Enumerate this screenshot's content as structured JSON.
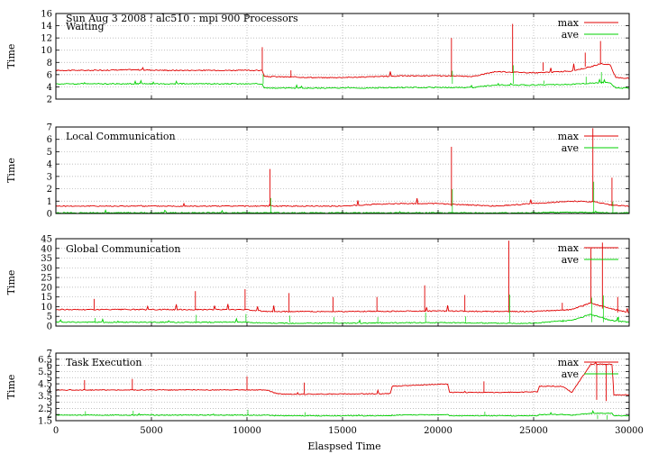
{
  "figure": {
    "title": "Sun Aug 3 2008 : alc510 : mpi 900 Processors",
    "xlabel": "Elaspsed Time"
  },
  "chart_data": [
    {
      "type": "line",
      "panel_label": "Waiting",
      "ylabel": "Time",
      "xlim": [
        0,
        30000
      ],
      "ylim": [
        2,
        16
      ],
      "yticks": [
        2,
        4,
        6,
        8,
        10,
        12,
        14,
        16
      ],
      "grid": true,
      "legend": "top-right",
      "x": [
        0,
        2000,
        4000,
        6000,
        8000,
        10800,
        10900,
        12500,
        14000,
        16000,
        18000,
        20000,
        21800,
        23000,
        25200,
        27000,
        28000,
        28500,
        29000,
        29300,
        30000
      ],
      "series": [
        {
          "name": "max",
          "color": "#e00000",
          "values": [
            6.7,
            6.7,
            6.8,
            6.7,
            6.7,
            6.7,
            5.7,
            5.6,
            5.5,
            5.6,
            5.8,
            5.8,
            5.7,
            6.5,
            6.3,
            6.6,
            7.3,
            7.8,
            7.6,
            5.5,
            5.4
          ]
        },
        {
          "name": "ave",
          "color": "#00d000",
          "values": [
            4.5,
            4.5,
            4.5,
            4.5,
            4.5,
            4.5,
            3.8,
            3.8,
            3.8,
            3.8,
            3.9,
            3.9,
            3.9,
            4.3,
            4.3,
            4.4,
            4.6,
            4.7,
            4.7,
            3.8,
            3.8
          ]
        }
      ],
      "spikes": [
        [
          10800,
          10.5
        ],
        [
          12300,
          6.7
        ],
        [
          20700,
          12.0
        ],
        [
          23900,
          14.3
        ],
        [
          25500,
          8.0
        ],
        [
          27700,
          9.6
        ],
        [
          28500,
          11.5
        ]
      ]
    },
    {
      "type": "line",
      "panel_label": "Local Communication",
      "ylabel": "Time",
      "xlim": [
        0,
        30000
      ],
      "ylim": [
        0,
        7
      ],
      "yticks": [
        0,
        1,
        2,
        3,
        4,
        5,
        6,
        7
      ],
      "grid": true,
      "legend": "top-right",
      "x": [
        0,
        5000,
        10000,
        11200,
        15000,
        17500,
        20000,
        23000,
        24000,
        27000,
        28200,
        29000,
        30000
      ],
      "series": [
        {
          "name": "max",
          "color": "#e00000",
          "values": [
            0.6,
            0.6,
            0.6,
            0.6,
            0.6,
            0.8,
            0.8,
            0.6,
            0.7,
            1.0,
            0.95,
            0.7,
            0.6
          ]
        },
        {
          "name": "ave",
          "color": "#00d000",
          "values": [
            0.05,
            0.05,
            0.05,
            0.05,
            0.05,
            0.05,
            0.05,
            0.05,
            0.05,
            0.1,
            0.1,
            0.05,
            0.05
          ]
        }
      ],
      "spikes": [
        [
          11200,
          3.6
        ],
        [
          20700,
          5.4
        ],
        [
          28100,
          6.9
        ],
        [
          29100,
          2.9
        ]
      ]
    },
    {
      "type": "line",
      "panel_label": "Global Communication",
      "ylabel": "Time",
      "xlim": [
        0,
        30000
      ],
      "ylim": [
        0,
        45
      ],
      "yticks": [
        0,
        5,
        10,
        15,
        20,
        25,
        30,
        35,
        40,
        45
      ],
      "grid": true,
      "legend": "top-right",
      "x": [
        0,
        5000,
        10000,
        11000,
        15000,
        20000,
        23000,
        25000,
        27000,
        28000,
        29000,
        30000
      ],
      "series": [
        {
          "name": "max",
          "color": "#e00000",
          "values": [
            8.5,
            8.5,
            8.5,
            7.5,
            7.5,
            7.8,
            7.5,
            7.5,
            8.5,
            12,
            9,
            7
          ]
        },
        {
          "name": "ave",
          "color": "#00d000",
          "values": [
            2.0,
            2.0,
            2.0,
            1.5,
            1.5,
            1.8,
            1.5,
            1.5,
            3,
            6,
            3,
            2
          ]
        }
      ],
      "spikes": [
        [
          2000,
          14
        ],
        [
          7300,
          18
        ],
        [
          9900,
          19
        ],
        [
          12200,
          17
        ],
        [
          14500,
          15
        ],
        [
          16800,
          15
        ],
        [
          19300,
          21
        ],
        [
          21400,
          16
        ],
        [
          23700,
          44
        ],
        [
          26500,
          12
        ],
        [
          28000,
          40
        ],
        [
          28600,
          43
        ],
        [
          29400,
          15
        ]
      ]
    },
    {
      "type": "line",
      "panel_label": "Task Execution",
      "ylabel": "Time",
      "xlim": [
        0,
        30000
      ],
      "ylim": [
        1.5,
        7
      ],
      "yticks": [
        1.5,
        2,
        2.5,
        3,
        3.5,
        4,
        4.5,
        5,
        5.5,
        6,
        6.5,
        7
      ],
      "xticks": [
        0,
        5000,
        10000,
        15000,
        20000,
        25000,
        30000
      ],
      "grid": true,
      "legend": "top-right",
      "x": [
        0,
        5000,
        10000,
        11000,
        11600,
        12000,
        17500,
        17600,
        20500,
        20600,
        23000,
        25200,
        25300,
        26500,
        27000,
        28000,
        29100,
        29200,
        30000
      ],
      "series": [
        {
          "name": "max",
          "color": "#e00000",
          "values": [
            4.0,
            4.0,
            4.0,
            4.0,
            3.7,
            3.65,
            3.7,
            4.3,
            4.5,
            3.8,
            3.8,
            3.85,
            4.3,
            4.3,
            3.8,
            6.1,
            6.1,
            3.6,
            3.6
          ]
        },
        {
          "name": "ave",
          "color": "#00d000",
          "values": [
            1.95,
            1.95,
            1.95,
            1.95,
            1.9,
            1.9,
            1.9,
            1.95,
            2.0,
            1.9,
            1.9,
            1.9,
            2.0,
            2.0,
            1.95,
            2.1,
            2.1,
            1.9,
            1.9
          ]
        }
      ],
      "spikes": [
        [
          1500,
          4.8
        ],
        [
          4000,
          4.9
        ],
        [
          10000,
          5.1
        ],
        [
          13000,
          4.6
        ],
        [
          22400,
          4.7
        ],
        [
          28300,
          3.2
        ],
        [
          28800,
          3.1
        ]
      ]
    }
  ]
}
